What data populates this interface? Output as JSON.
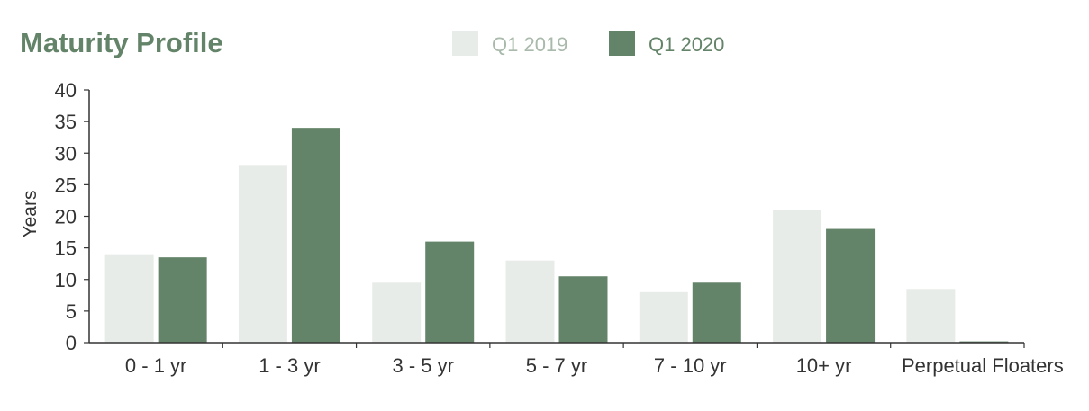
{
  "chart_data": {
    "type": "bar",
    "title": "Maturity Profile",
    "xlabel": "",
    "ylabel": "Years",
    "ylim": [
      0,
      40
    ],
    "yticks": [
      0,
      5,
      10,
      15,
      20,
      25,
      30,
      35,
      40
    ],
    "categories": [
      "0 - 1 yr",
      "1 - 3 yr",
      "3 - 5 yr",
      "5 - 7 yr",
      "7 - 10 yr",
      "10+ yr",
      "Perpetual Floaters"
    ],
    "series": [
      {
        "name": "Q1 2019",
        "color": "#e8ece8",
        "values": [
          14,
          28,
          9.5,
          13,
          8,
          21,
          8.5
        ]
      },
      {
        "name": "Q1 2020",
        "color": "#648469",
        "values": [
          13.5,
          34,
          16,
          10.5,
          9.5,
          18,
          0.2
        ]
      }
    ],
    "grid": false,
    "legend_position": "top-center",
    "colors": {
      "title": "#648469",
      "axis": "#333333",
      "legend_2019_text": "#a9b9ab",
      "legend_2020_text": "#648469"
    }
  }
}
